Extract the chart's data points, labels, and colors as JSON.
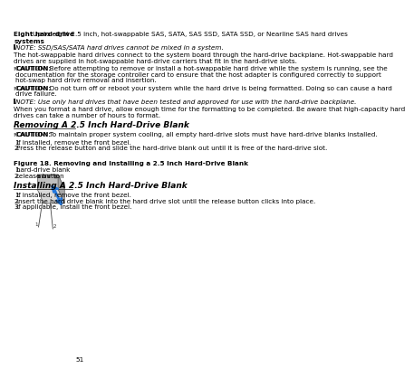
{
  "page_number": "51",
  "bg_color": "#ffffff",
  "text_color": "#000000",
  "col1": "Eight hard-drive\nsystems",
  "col2": "Up to eight 2.5 inch, hot-swappable SAS, SATA, SAS SSD, SATA SSD, or Nearline SAS hard drives",
  "note1": "NOTE: SSD/SAS/SATA hard drives cannot be mixed in a system.",
  "para1a": "The hot-swappable hard drives connect to the system board through the hard-drive backplane. Hot-swappable hard",
  "para1b": "drives are supplied in hot-swappable hard-drive carriers that fit in the hard-drive slots.",
  "caution1a": "CAUTION: Before attempting to remove or install a hot-swappable hard drive while the system is running, see the",
  "caution1b": "documentation for the storage controller card to ensure that the host adapter is configured correctly to support",
  "caution1c": "hot-swap hard drive removal and insertion.",
  "caution2a": "CAUTION: Do not turn off or reboot your system while the hard drive is being formatted. Doing so can cause a hard",
  "caution2b": "drive failure.",
  "note2": "NOTE: Use only hard drives that have been tested and approved for use with the hard-drive backplane.",
  "para2a": "When you format a hard drive, allow enough time for the formatting to be completed. Be aware that high-capacity hard",
  "para2b": "drives can take a number of hours to format.",
  "section1_title": "Removing A 2.5 Inch Hard-Drive Blank",
  "caution3": "CAUTION: To maintain proper system cooling, all empty hard-drive slots must have hard-drive blanks installed.",
  "step_r1": "If installed, remove the front bezel.",
  "step_r2": "Press the release button and slide the hard-drive blank out until it is free of the hard-drive slot.",
  "fig_caption": "Figure 18. Removing and Installing a 2.5 Inch Hard-Drive Blank",
  "fig_label1": "hard-drive blank",
  "fig_label2": "release button",
  "section2_title": "Installing A 2.5 Inch Hard-Drive Blank",
  "step_i1": "If installed, remove the front bezel.",
  "step_i2": "Insert the hard drive blank into the hard drive slot until the release button clicks into place.",
  "step_i3": "If applicable, install the front bezel."
}
